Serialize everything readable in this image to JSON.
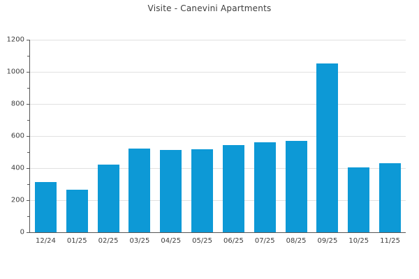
{
  "chart_data": {
    "type": "bar",
    "title": "Visite - Canevini Apartments",
    "categories": [
      "12/24",
      "01/25",
      "02/25",
      "03/25",
      "04/25",
      "05/25",
      "06/25",
      "07/25",
      "08/25",
      "09/25",
      "10/25",
      "11/25"
    ],
    "values": [
      312,
      264,
      421,
      521,
      512,
      518,
      542,
      560,
      570,
      1052,
      406,
      430
    ],
    "xlabel": "",
    "ylabel": "",
    "ylim": [
      0,
      1200
    ],
    "ytick_step": 200,
    "minor_tick_step": 100,
    "ytick_labels": [
      "0",
      "200",
      "400",
      "600",
      "800",
      "1000",
      "1200"
    ],
    "grid": "horizontal-major",
    "legend": "none",
    "colors": {
      "bar": "#0d99d6",
      "grid": "#e1e1e1",
      "axis": "#555555",
      "text": "#3c3c3c",
      "background": "#ffffff"
    }
  }
}
